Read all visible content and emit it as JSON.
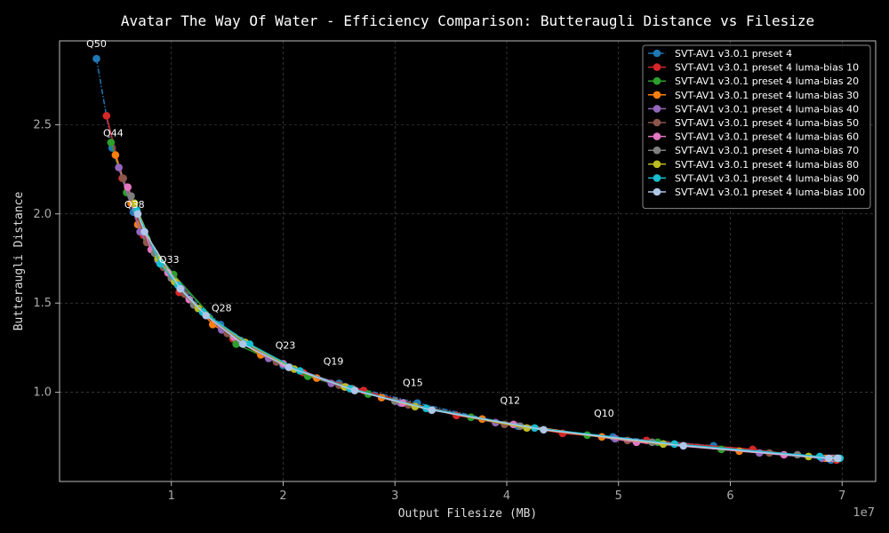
{
  "chart_data": {
    "type": "line",
    "title": "Avatar The Way Of Water - Efficiency Comparison: Butteraugli Distance vs Filesize",
    "xlabel": "Output Filesize (MB)",
    "ylabel": "Butteraugli Distance",
    "x_offset_label": "1e7",
    "xlim": [
      0,
      7.3
    ],
    "ylim": [
      0.5,
      2.97
    ],
    "x_ticks": [
      1,
      2,
      3,
      4,
      5,
      6,
      7
    ],
    "y_ticks": [
      1.0,
      1.5,
      2.0,
      2.5
    ],
    "x_tick_labels": [
      "1",
      "2",
      "3",
      "4",
      "5",
      "6",
      "7"
    ],
    "y_tick_labels": [
      "1.0",
      "1.5",
      "2.0",
      "2.5"
    ],
    "grid": true,
    "legend_position": "top-right",
    "annotations": [
      {
        "text": "Q50",
        "x": 0.33,
        "y": 2.87
      },
      {
        "text": "Q44",
        "x": 0.48,
        "y": 2.37
      },
      {
        "text": "Q38",
        "x": 0.67,
        "y": 1.97
      },
      {
        "text": "Q33",
        "x": 0.98,
        "y": 1.66
      },
      {
        "text": "Q28",
        "x": 1.45,
        "y": 1.39
      },
      {
        "text": "Q23",
        "x": 2.02,
        "y": 1.18
      },
      {
        "text": "Q19",
        "x": 2.45,
        "y": 1.09
      },
      {
        "text": "Q15",
        "x": 3.16,
        "y": 0.97
      },
      {
        "text": "Q12",
        "x": 4.03,
        "y": 0.87
      },
      {
        "text": "Q10",
        "x": 4.87,
        "y": 0.8
      }
    ],
    "series": [
      {
        "name": "SVT-AV1 v3.0.1 preset 4",
        "color": "#1f77b4",
        "dashed": true,
        "x": [
          0.33,
          0.47,
          0.66,
          0.97,
          1.44,
          2.0,
          2.5,
          3.2,
          4.1,
          4.95,
          5.85,
          6.9
        ],
        "y": [
          2.87,
          2.37,
          2.01,
          1.67,
          1.38,
          1.15,
          1.05,
          0.94,
          0.81,
          0.75,
          0.7,
          0.62
        ]
      },
      {
        "name": "SVT-AV1 v3.0.1 preset 4 luma-bias 10",
        "color": "#d62728",
        "dashed": false,
        "x": [
          0.42,
          0.56,
          0.75,
          1.07,
          1.55,
          2.18,
          2.72,
          3.55,
          4.5,
          5.25,
          6.2,
          6.95
        ],
        "y": [
          2.55,
          2.2,
          1.88,
          1.56,
          1.3,
          1.11,
          1.01,
          0.87,
          0.77,
          0.73,
          0.68,
          0.62
        ]
      },
      {
        "name": "SVT-AV1 v3.0.1 preset 4 luma-bias 20",
        "color": "#2ca02c",
        "dashed": false,
        "x": [
          0.46,
          0.6,
          0.78,
          1.02,
          1.58,
          2.22,
          2.76,
          3.68,
          4.72,
          5.35,
          5.92,
          6.7
        ],
        "y": [
          2.4,
          2.12,
          1.86,
          1.66,
          1.27,
          1.09,
          0.99,
          0.86,
          0.76,
          0.72,
          0.68,
          0.64
        ]
      },
      {
        "name": "SVT-AV1 v3.0.1 preset 4 luma-bias 30",
        "color": "#ff7f0e",
        "dashed": false,
        "x": [
          0.5,
          0.64,
          0.7,
          1.05,
          1.37,
          1.8,
          2.3,
          2.88,
          3.78,
          4.85,
          6.08,
          6.85
        ],
        "y": [
          2.33,
          2.06,
          1.94,
          1.61,
          1.38,
          1.21,
          1.08,
          0.97,
          0.85,
          0.75,
          0.67,
          0.63
        ]
      },
      {
        "name": "SVT-AV1 v3.0.1 preset 4 luma-bias 40",
        "color": "#9467bd",
        "dashed": false,
        "x": [
          0.53,
          0.72,
          0.88,
          1.09,
          1.45,
          1.87,
          2.43,
          3.05,
          3.9,
          4.97,
          6.26,
          6.82
        ],
        "y": [
          2.26,
          1.9,
          1.74,
          1.58,
          1.35,
          1.19,
          1.05,
          0.94,
          0.83,
          0.74,
          0.66,
          0.63
        ]
      },
      {
        "name": "SVT-AV1 v3.0.1 preset 4 luma-bias 50",
        "color": "#8c564b",
        "dashed": false,
        "x": [
          0.57,
          0.78,
          0.93,
          1.12,
          1.5,
          1.94,
          2.5,
          3.12,
          3.98,
          5.08,
          6.35,
          6.9
        ],
        "y": [
          2.2,
          1.84,
          1.7,
          1.55,
          1.33,
          1.17,
          1.04,
          0.93,
          0.82,
          0.73,
          0.66,
          0.63
        ]
      },
      {
        "name": "SVT-AV1 v3.0.1 preset 4 luma-bias 60",
        "color": "#e377c2",
        "dashed": false,
        "x": [
          0.61,
          0.82,
          0.97,
          1.16,
          1.56,
          2.0,
          2.56,
          3.07,
          4.06,
          5.16,
          6.48,
          6.92
        ],
        "y": [
          2.15,
          1.8,
          1.67,
          1.52,
          1.31,
          1.16,
          1.03,
          0.94,
          0.82,
          0.72,
          0.65,
          0.63
        ]
      },
      {
        "name": "SVT-AV1 v3.0.1 preset 4 luma-bias 70",
        "color": "#7f7f7f",
        "dashed": false,
        "x": [
          0.64,
          0.85,
          1.0,
          1.2,
          1.62,
          2.06,
          2.62,
          3.0,
          4.12,
          5.3,
          6.6,
          6.94
        ],
        "y": [
          2.1,
          1.78,
          1.64,
          1.49,
          1.29,
          1.14,
          1.02,
          0.95,
          0.81,
          0.72,
          0.65,
          0.63
        ]
      },
      {
        "name": "SVT-AV1 v3.0.1 preset 4 luma-bias 80",
        "color": "#bcbd22",
        "dashed": false,
        "x": [
          0.67,
          0.88,
          1.03,
          1.24,
          1.66,
          2.1,
          2.55,
          3.18,
          4.18,
          5.4,
          6.7,
          6.96
        ],
        "y": [
          2.06,
          1.75,
          1.62,
          1.47,
          1.28,
          1.13,
          1.03,
          0.92,
          0.8,
          0.71,
          0.64,
          0.63
        ]
      },
      {
        "name": "SVT-AV1 v3.0.1 preset 4 luma-bias 90",
        "color": "#17becf",
        "dashed": false,
        "x": [
          0.69,
          0.9,
          1.06,
          1.28,
          1.7,
          2.15,
          2.6,
          3.28,
          4.25,
          5.5,
          6.8,
          6.98
        ],
        "y": [
          2.02,
          1.72,
          1.6,
          1.45,
          1.27,
          1.12,
          1.02,
          0.91,
          0.8,
          0.71,
          0.64,
          0.63
        ]
      },
      {
        "name": "SVT-AV1 v3.0.1 preset 4 luma-bias 100",
        "color": "#aec7e8",
        "dashed": false,
        "x": [
          0.7,
          0.76,
          1.08,
          1.31,
          1.64,
          2.05,
          2.64,
          3.33,
          4.33,
          5.58,
          6.88,
          6.96
        ],
        "y": [
          2.0,
          1.9,
          1.58,
          1.43,
          1.27,
          1.14,
          1.01,
          0.9,
          0.79,
          0.7,
          0.63,
          0.63
        ]
      }
    ]
  }
}
